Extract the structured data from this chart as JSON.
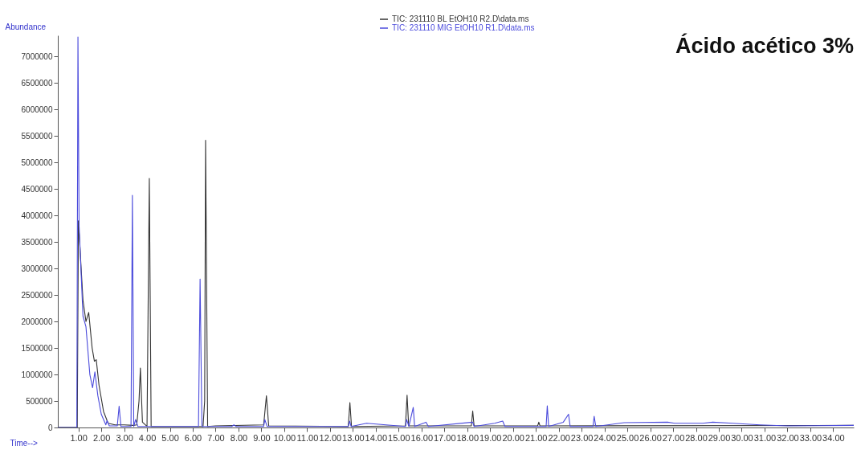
{
  "chart_data": {
    "type": "line",
    "title": "Ácido acético 3%",
    "xlabel": "Time-->",
    "ylabel": "Abundance",
    "xlim": [
      0.1,
      34.9
    ],
    "ylim": [
      0,
      7400000
    ],
    "xticks": [
      {
        "value": 1,
        "label": "1.00"
      },
      {
        "value": 2,
        "label": "2.00"
      },
      {
        "value": 3,
        "label": "3.00"
      },
      {
        "value": 4,
        "label": "4.00"
      },
      {
        "value": 5,
        "label": "5.00"
      },
      {
        "value": 6,
        "label": "6.00"
      },
      {
        "value": 7,
        "label": "7.00"
      },
      {
        "value": 8,
        "label": "8.00"
      },
      {
        "value": 9,
        "label": "9.00"
      },
      {
        "value": 10,
        "label": "10.00"
      },
      {
        "value": 11,
        "label": "11.00"
      },
      {
        "value": 12,
        "label": "12.00"
      },
      {
        "value": 13,
        "label": "13.00"
      },
      {
        "value": 14,
        "label": "14.00"
      },
      {
        "value": 15,
        "label": "15.00"
      },
      {
        "value": 16,
        "label": "16.00"
      },
      {
        "value": 17,
        "label": "17.00"
      },
      {
        "value": 18,
        "label": "18.00"
      },
      {
        "value": 19,
        "label": "19.00"
      },
      {
        "value": 20,
        "label": "20.00"
      },
      {
        "value": 21,
        "label": "21.00"
      },
      {
        "value": 22,
        "label": "22.00"
      },
      {
        "value": 23,
        "label": "23.00"
      },
      {
        "value": 24,
        "label": "24.00"
      },
      {
        "value": 25,
        "label": "25.00"
      },
      {
        "value": 26,
        "label": "26.00"
      },
      {
        "value": 27,
        "label": "27.00"
      },
      {
        "value": 28,
        "label": "28.00"
      },
      {
        "value": 29,
        "label": "29.00"
      },
      {
        "value": 30,
        "label": "30.00"
      },
      {
        "value": 31,
        "label": "31.00"
      },
      {
        "value": 32,
        "label": "32.00"
      },
      {
        "value": 33,
        "label": "33.00"
      },
      {
        "value": 34,
        "label": "34.00"
      }
    ],
    "yticks": [
      0,
      500000,
      1000000,
      1500000,
      2000000,
      2500000,
      3000000,
      3500000,
      4000000,
      4500000,
      5000000,
      5500000,
      6000000,
      6500000,
      7000000
    ],
    "legend": "top",
    "grid": false,
    "marker": "none",
    "line_style": "solid",
    "series": [
      {
        "name": "TIC: 231110 BL EtOH10 R2.D\\data.ms",
        "color": "#333333",
        "x": [
          0.1,
          0.95,
          1.0,
          1.2,
          1.33,
          1.45,
          1.6,
          1.7,
          1.78,
          1.9,
          2.1,
          2.3,
          2.6,
          3.0,
          3.4,
          3.55,
          3.65,
          3.71,
          3.8,
          4.0,
          4.1,
          4.18,
          5.0,
          6.45,
          6.52,
          6.56,
          6.65,
          7.0,
          9.1,
          9.22,
          9.32,
          12.8,
          12.87,
          12.94,
          15.3,
          15.37,
          15.44,
          18.18,
          18.24,
          18.3,
          21.08,
          21.13,
          21.18,
          34.9
        ],
        "values": [
          0,
          0,
          3900000,
          2400000,
          2000000,
          2170000,
          1500000,
          1250000,
          1280000,
          800000,
          300000,
          80000,
          50000,
          50000,
          40000,
          50000,
          500000,
          1120000,
          100000,
          20000,
          4700000,
          20000,
          20000,
          20000,
          500000,
          5420000,
          20000,
          30000,
          50000,
          600000,
          30000,
          20000,
          470000,
          20000,
          30000,
          610000,
          30000,
          30000,
          310000,
          30000,
          30000,
          100000,
          30000,
          40000
        ]
      },
      {
        "name": "TIC: 231110 MIG EtOH10 R1.D\\data.ms",
        "color": "#4b4bdc",
        "x": [
          0.1,
          0.93,
          0.98,
          1.03,
          1.2,
          1.33,
          1.5,
          1.62,
          1.72,
          1.85,
          2.0,
          2.2,
          2.25,
          2.35,
          2.7,
          2.78,
          2.86,
          3.3,
          3.36,
          3.42,
          3.5,
          3.6,
          6.25,
          6.32,
          6.4,
          7.7,
          7.8,
          7.9,
          9.1,
          9.15,
          9.25,
          12.8,
          12.86,
          12.92,
          13.6,
          15.3,
          15.35,
          15.45,
          15.64,
          15.7,
          16.2,
          16.3,
          18.24,
          18.3,
          19.2,
          19.55,
          19.65,
          21.45,
          21.5,
          21.56,
          22.2,
          22.43,
          22.5,
          23.5,
          23.55,
          23.62,
          24.86,
          26.76,
          27.07,
          28.3,
          28.73,
          29.6,
          30.8,
          32.0,
          34.9
        ],
        "values": [
          0,
          0,
          7370000,
          3800000,
          2100000,
          1900000,
          1000000,
          750000,
          1050000,
          600000,
          250000,
          50000,
          130000,
          30000,
          30000,
          400000,
          20000,
          20000,
          4380000,
          20000,
          150000,
          20000,
          20000,
          2800000,
          20000,
          20000,
          50000,
          20000,
          20000,
          150000,
          20000,
          20000,
          120000,
          20000,
          80000,
          20000,
          150000,
          20000,
          380000,
          20000,
          100000,
          20000,
          100000,
          20000,
          80000,
          120000,
          20000,
          20000,
          410000,
          20000,
          100000,
          250000,
          20000,
          20000,
          210000,
          20000,
          90000,
          100000,
          80000,
          80000,
          100000,
          80000,
          50000,
          30000,
          40000
        ]
      }
    ]
  }
}
